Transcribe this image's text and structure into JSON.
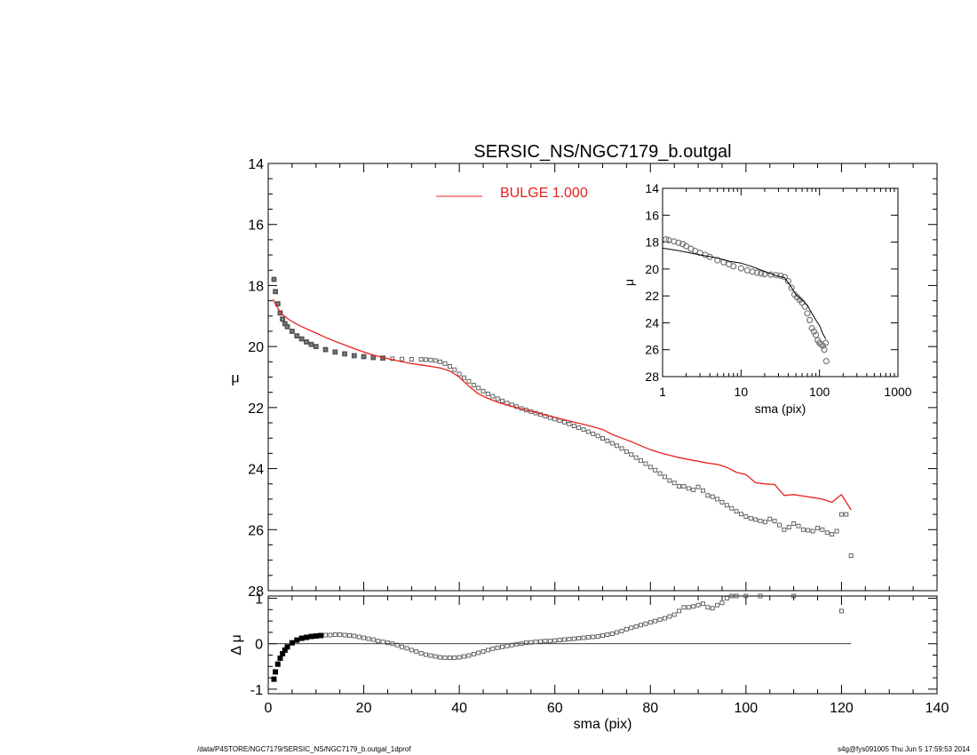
{
  "chart_data": [
    {
      "name": "main",
      "type": "scatter",
      "title": "SERSIC_NS/NGC7179_b.outgal",
      "xlabel": "sma (pix)",
      "ylabel": "μ",
      "xlim": [
        0,
        140
      ],
      "ylim": [
        28,
        14
      ],
      "y_inverted": true,
      "xticks": [
        0,
        20,
        40,
        60,
        80,
        100,
        120,
        140
      ],
      "yticks": [
        14,
        16,
        18,
        20,
        22,
        24,
        26,
        28
      ],
      "legend": {
        "label": "BULGE  1.000",
        "color": "#e8201c",
        "placement": "top-center"
      },
      "series": [
        {
          "kind": "points",
          "marker": "open-square",
          "color": "#888888",
          "x": [
            1.2,
            1.5,
            2,
            2.5,
            3,
            3.5,
            4,
            5,
            6,
            7,
            8,
            9,
            10,
            12,
            14,
            16,
            18,
            20,
            22,
            24,
            26,
            28,
            30,
            32,
            33,
            34,
            35,
            36,
            37,
            38,
            39,
            40,
            41,
            42,
            43,
            44,
            45,
            46,
            47,
            48,
            49,
            50,
            51,
            52,
            53,
            54,
            55,
            56,
            57,
            58,
            59,
            60,
            61,
            62,
            63,
            64,
            65,
            66,
            67,
            68,
            69,
            70,
            71,
            72,
            73,
            74,
            75,
            76,
            77,
            78,
            79,
            80,
            81,
            82,
            83,
            84,
            85,
            86,
            87,
            88,
            89,
            90,
            91,
            92,
            93,
            94,
            95,
            96,
            97,
            98,
            99,
            100,
            101,
            102,
            103,
            104,
            105,
            106,
            107,
            108,
            109,
            110,
            111,
            112,
            113,
            114,
            115,
            116,
            117,
            118,
            119,
            120,
            121,
            122
          ],
          "y": [
            17.8,
            18.2,
            18.6,
            18.9,
            19.1,
            19.25,
            19.35,
            19.5,
            19.65,
            19.75,
            19.85,
            19.93,
            20.0,
            20.1,
            20.18,
            20.24,
            20.3,
            20.33,
            20.36,
            20.38,
            20.4,
            20.41,
            20.42,
            20.42,
            20.43,
            20.44,
            20.46,
            20.5,
            20.56,
            20.65,
            20.76,
            20.9,
            21.02,
            21.14,
            21.26,
            21.36,
            21.46,
            21.55,
            21.63,
            21.71,
            21.78,
            21.85,
            21.91,
            21.97,
            22.03,
            22.08,
            22.13,
            22.18,
            22.23,
            22.28,
            22.33,
            22.38,
            22.43,
            22.48,
            22.54,
            22.6,
            22.66,
            22.72,
            22.79,
            22.86,
            22.93,
            23.01,
            23.09,
            23.17,
            23.25,
            23.34,
            23.44,
            23.54,
            23.64,
            23.74,
            23.84,
            23.95,
            24.05,
            24.16,
            24.27,
            24.39,
            24.47,
            24.58,
            24.58,
            24.65,
            24.7,
            24.6,
            24.72,
            24.88,
            24.92,
            25.0,
            25.1,
            25.2,
            25.3,
            25.4,
            25.49,
            25.57,
            25.63,
            25.67,
            25.71,
            25.75,
            25.65,
            25.72,
            25.85,
            26.0,
            25.92,
            25.8,
            25.88,
            26.0,
            26.02,
            26.05,
            25.95,
            26.0,
            26.1,
            26.15,
            26.05,
            25.5,
            25.5,
            26.85
          ]
        },
        {
          "kind": "line",
          "name": "BULGE  1.000",
          "color": "#e8201c",
          "x": [
            1,
            2,
            3,
            4,
            5,
            6,
            8,
            10,
            12,
            14,
            16,
            18,
            20,
            22,
            24,
            26,
            28,
            30,
            32,
            34,
            36,
            38,
            40,
            42,
            44,
            46,
            48,
            50,
            52,
            54,
            56,
            58,
            60,
            62,
            64,
            66,
            68,
            70,
            72,
            74,
            76,
            78,
            80,
            82,
            84,
            86,
            88,
            90,
            92,
            94,
            96,
            98,
            100,
            102,
            104,
            106,
            108,
            110,
            112,
            114,
            116,
            118,
            120,
            122
          ],
          "y": [
            18.45,
            18.75,
            18.95,
            19.08,
            19.18,
            19.27,
            19.42,
            19.56,
            19.7,
            19.83,
            19.95,
            20.07,
            20.18,
            20.28,
            20.36,
            20.43,
            20.5,
            20.56,
            20.6,
            20.65,
            20.7,
            20.8,
            21.0,
            21.3,
            21.55,
            21.7,
            21.82,
            21.92,
            22.0,
            22.08,
            22.16,
            22.24,
            22.32,
            22.4,
            22.48,
            22.55,
            22.63,
            22.72,
            22.88,
            23.0,
            23.12,
            23.25,
            23.38,
            23.48,
            23.56,
            23.64,
            23.7,
            23.76,
            23.82,
            23.86,
            23.96,
            24.12,
            24.2,
            24.46,
            24.5,
            24.52,
            24.88,
            24.85,
            24.9,
            24.95,
            25.0,
            25.1,
            24.85,
            25.35
          ]
        }
      ]
    },
    {
      "name": "residual",
      "type": "scatter",
      "xlabel": "sma (pix)",
      "ylabel": "Δ μ",
      "xlim": [
        0,
        140
      ],
      "ylim": [
        -1.1,
        1.05
      ],
      "xticks": [
        0,
        20,
        40,
        60,
        80,
        100,
        120,
        140
      ],
      "yticks": [
        -1,
        0,
        1
      ],
      "zero_line": true,
      "series": [
        {
          "kind": "points",
          "marker": "open-square",
          "color": "#555555",
          "x": [
            1.2,
            1.5,
            2,
            2.5,
            3,
            3.5,
            4,
            5,
            6,
            7,
            8,
            9,
            10,
            11,
            12,
            13,
            14,
            15,
            16,
            17,
            18,
            19,
            20,
            21,
            22,
            23,
            24,
            25,
            26,
            27,
            28,
            29,
            30,
            31,
            32,
            33,
            34,
            35,
            36,
            37,
            38,
            39,
            40,
            41,
            42,
            43,
            44,
            45,
            46,
            47,
            48,
            49,
            50,
            51,
            52,
            53,
            54,
            55,
            56,
            57,
            58,
            59,
            60,
            61,
            62,
            63,
            64,
            65,
            66,
            67,
            68,
            69,
            70,
            71,
            72,
            73,
            74,
            75,
            76,
            77,
            78,
            79,
            80,
            81,
            82,
            83,
            84,
            85,
            86,
            87,
            88,
            89,
            90,
            91,
            92,
            93,
            94,
            95,
            96,
            97,
            98,
            100,
            103,
            110,
            120
          ],
          "y": [
            -0.78,
            -0.62,
            -0.45,
            -0.32,
            -0.22,
            -0.14,
            -0.07,
            0.02,
            0.08,
            0.12,
            0.14,
            0.16,
            0.17,
            0.18,
            0.19,
            0.19,
            0.2,
            0.2,
            0.19,
            0.18,
            0.17,
            0.15,
            0.13,
            0.11,
            0.09,
            0.06,
            0.04,
            0.02,
            0.0,
            -0.03,
            -0.07,
            -0.1,
            -0.14,
            -0.17,
            -0.21,
            -0.24,
            -0.26,
            -0.28,
            -0.3,
            -0.31,
            -0.31,
            -0.31,
            -0.3,
            -0.28,
            -0.26,
            -0.23,
            -0.2,
            -0.17,
            -0.14,
            -0.11,
            -0.09,
            -0.07,
            -0.05,
            -0.03,
            -0.01,
            0.0,
            0.02,
            0.03,
            0.04,
            0.05,
            0.06,
            0.06,
            0.07,
            0.08,
            0.09,
            0.1,
            0.11,
            0.12,
            0.13,
            0.14,
            0.15,
            0.16,
            0.18,
            0.2,
            0.22,
            0.25,
            0.28,
            0.32,
            0.35,
            0.38,
            0.41,
            0.44,
            0.47,
            0.5,
            0.53,
            0.56,
            0.6,
            0.64,
            0.72,
            0.8,
            0.8,
            0.82,
            0.85,
            0.88,
            0.8,
            0.78,
            0.85,
            0.9,
            1.0,
            1.05,
            1.05,
            1.05,
            1.05,
            1.05,
            0.72
          ]
        }
      ]
    },
    {
      "name": "inset",
      "type": "scatter",
      "xlabel": "sma (pix)",
      "ylabel": "μ",
      "xscale": "log",
      "xlim": [
        1,
        1000
      ],
      "ylim": [
        28,
        14
      ],
      "y_inverted": true,
      "xticks": [
        1,
        10,
        100,
        1000
      ],
      "yticks": [
        14,
        16,
        18,
        20,
        22,
        24,
        26,
        28
      ],
      "series": [
        {
          "kind": "points",
          "marker": "open-circle",
          "color": "#777777",
          "x": [
            1.1,
            1.2,
            1.4,
            1.6,
            1.8,
            2,
            2.3,
            2.6,
            3,
            3.5,
            4,
            5,
            6,
            7,
            8,
            10,
            12,
            14,
            16,
            18,
            20,
            24,
            28,
            32,
            36,
            40,
            44,
            48,
            52,
            56,
            60,
            65,
            70,
            75,
            80,
            85,
            90,
            95,
            100,
            105,
            110,
            115,
            120,
            122
          ],
          "y": [
            17.8,
            17.85,
            17.95,
            18.05,
            18.15,
            18.3,
            18.5,
            18.65,
            18.8,
            18.95,
            19.1,
            19.35,
            19.5,
            19.65,
            19.8,
            19.95,
            20.1,
            20.2,
            20.28,
            20.33,
            20.38,
            20.42,
            20.45,
            20.5,
            20.6,
            20.9,
            21.4,
            21.9,
            22.1,
            22.3,
            22.5,
            22.8,
            23.3,
            23.8,
            24.4,
            24.65,
            24.9,
            25.3,
            25.5,
            25.6,
            25.7,
            26.0,
            25.5,
            26.85
          ]
        },
        {
          "kind": "line",
          "color": "#000000",
          "x": [
            1,
            1.5,
            2,
            3,
            4,
            5,
            7,
            10,
            14,
            20,
            28,
            36,
            42,
            50,
            60,
            70,
            80,
            90,
            100,
            110,
            120
          ],
          "y": [
            18.45,
            18.6,
            18.75,
            18.95,
            19.08,
            19.18,
            19.42,
            19.56,
            19.83,
            20.18,
            20.5,
            20.65,
            21.2,
            21.9,
            22.3,
            22.7,
            23.3,
            23.8,
            24.2,
            24.8,
            25.2
          ]
        }
      ]
    }
  ],
  "footer": {
    "left": "/data/P4STORE/NGC7179/SERSIC_NS/NGC7179_b.outgal_1dprof",
    "right": "s4g@fys091005  Thu Jun  5 17:59:53 2014"
  }
}
